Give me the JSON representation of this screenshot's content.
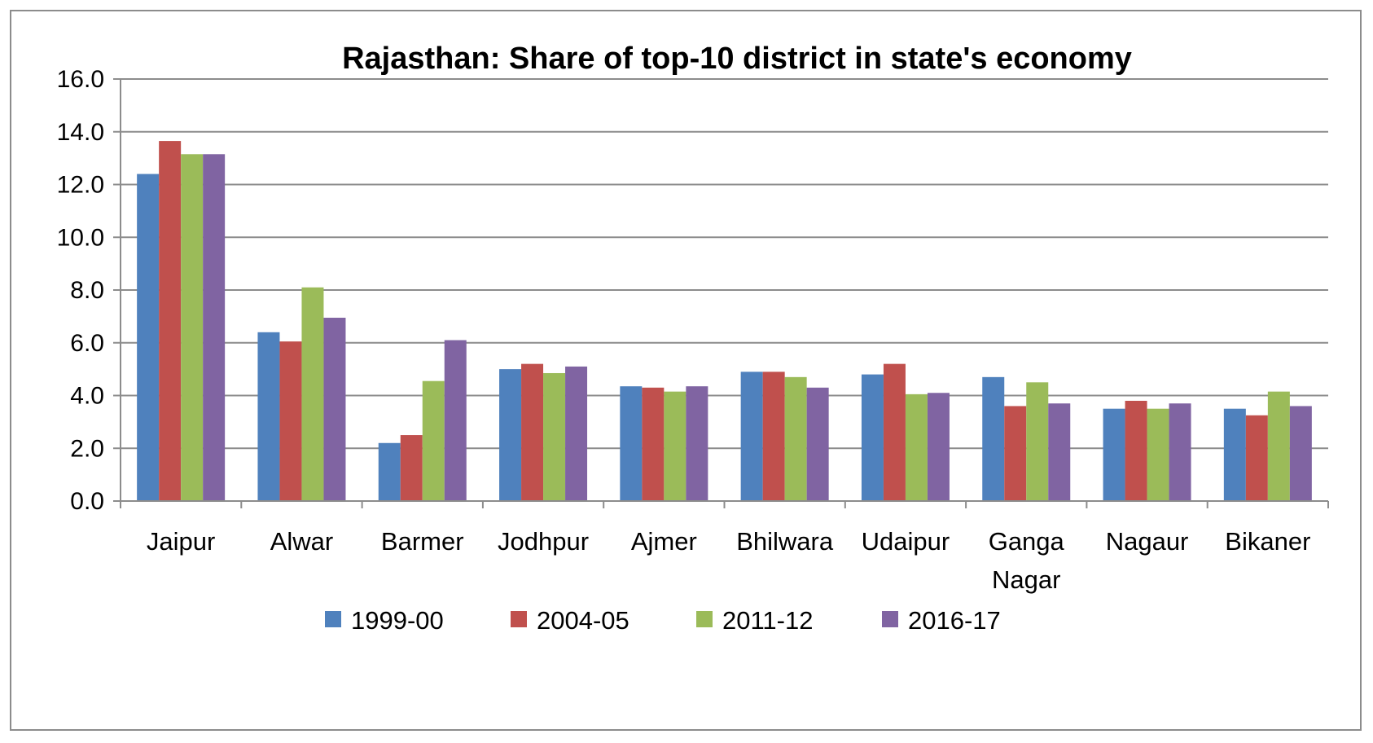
{
  "chart_data": {
    "type": "bar",
    "title": "Rajasthan: Share of top-10 district in state's economy",
    "xlabel": "",
    "ylabel": "",
    "ylim": [
      0,
      16
    ],
    "yticks": [
      "0.0",
      "2.0",
      "4.0",
      "6.0",
      "8.0",
      "10.0",
      "12.0",
      "14.0",
      "16.0"
    ],
    "grid": true,
    "legend_position": "bottom",
    "categories": [
      "Jaipur",
      "Alwar",
      "Barmer",
      "Jodhpur",
      "Ajmer",
      "Bhilwara",
      "Udaipur",
      "Ganga Nagar",
      "Nagaur",
      "Bikaner"
    ],
    "series": [
      {
        "name": "1999-00",
        "color": "#4F81BD",
        "values": [
          12.4,
          6.4,
          2.2,
          5.0,
          4.35,
          4.9,
          4.8,
          4.7,
          3.5,
          3.5
        ]
      },
      {
        "name": "2004-05",
        "color": "#C0504D",
        "values": [
          13.65,
          6.05,
          2.5,
          5.2,
          4.3,
          4.9,
          5.2,
          3.6,
          3.8,
          3.25
        ]
      },
      {
        "name": "2011-12",
        "color": "#9BBB59",
        "values": [
          13.15,
          8.1,
          4.55,
          4.85,
          4.15,
          4.7,
          4.05,
          4.5,
          3.5,
          4.15
        ]
      },
      {
        "name": "2016-17",
        "color": "#8064A2",
        "values": [
          13.15,
          6.95,
          6.1,
          5.1,
          4.35,
          4.3,
          4.1,
          3.7,
          3.7,
          3.6
        ]
      }
    ]
  }
}
